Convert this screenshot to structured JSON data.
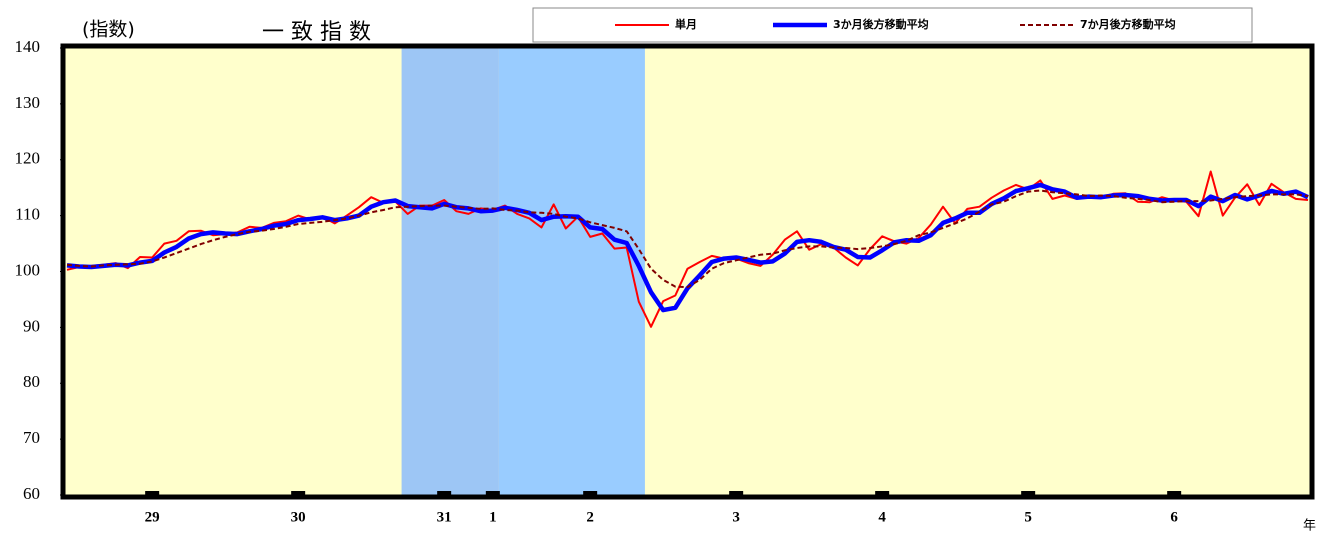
{
  "chart_data": {
    "type": "line",
    "title": "一 致 指 数",
    "ylabel": "(指数)",
    "xlabel": "年",
    "ylim": [
      60,
      140
    ],
    "yticks": [
      60,
      70,
      80,
      90,
      100,
      110,
      120,
      130,
      140
    ],
    "background": "#ffffcc",
    "shaded_periods": [
      {
        "from": 27.5,
        "to": 35.5,
        "color": "#9dc6f5"
      },
      {
        "from": 35.5,
        "to": 47.5,
        "color": "#99ccff"
      }
    ],
    "categories": [
      null,
      null,
      null,
      null,
      null,
      null,
      null,
      "29",
      null,
      null,
      null,
      null,
      null,
      null,
      null,
      null,
      null,
      null,
      null,
      "30",
      null,
      null,
      null,
      null,
      null,
      null,
      null,
      null,
      null,
      null,
      null,
      "31",
      null,
      null,
      null,
      "1",
      null,
      null,
      null,
      null,
      null,
      null,
      null,
      "2",
      null,
      null,
      null,
      null,
      null,
      null,
      null,
      null,
      null,
      null,
      null,
      "3",
      null,
      null,
      null,
      null,
      null,
      null,
      null,
      null,
      null,
      null,
      null,
      "4",
      null,
      null,
      null,
      null,
      null,
      null,
      null,
      null,
      null,
      null,
      null,
      "5",
      null,
      null,
      null,
      null,
      null,
      null,
      null,
      null,
      null,
      null,
      null,
      "6",
      null,
      null,
      null,
      null,
      null,
      null,
      null,
      null,
      null,
      null,
      null
    ],
    "series": [
      {
        "name": "単月",
        "color": "#ff0000",
        "values": [
          100.3,
          100.8,
          101.0,
          101.2,
          101.5,
          100.6,
          102.6,
          102.5,
          105.0,
          105.5,
          107.2,
          107.3,
          106.5,
          106.7,
          107.0,
          108.0,
          107.8,
          108.7,
          109.0,
          110.0,
          109.3,
          109.8,
          108.6,
          110.0,
          111.5,
          113.3,
          112.3,
          112.5,
          110.3,
          111.8,
          111.8,
          112.8,
          110.8,
          110.3,
          111.3,
          111.0,
          111.8,
          110.3,
          109.5,
          107.9,
          112.0,
          107.7,
          109.8,
          106.2,
          106.8,
          104.1,
          104.3,
          94.6,
          90.1,
          94.7,
          95.7,
          100.5,
          101.7,
          102.8,
          102.3,
          102.3,
          101.5,
          101.0,
          103.0,
          105.7,
          107.2,
          103.9,
          104.9,
          104.3,
          102.5,
          101.1,
          104.0,
          106.3,
          105.4,
          105.0,
          106.0,
          108.4,
          111.6,
          108.6,
          111.2,
          111.6,
          113.2,
          114.5,
          115.5,
          114.7,
          116.3,
          113.0,
          113.6,
          113.0,
          113.5,
          113.3,
          113.9,
          114.0,
          112.5,
          112.4,
          113.3,
          112.7,
          112.5,
          109.9,
          117.9,
          110.0,
          113.2,
          115.6,
          111.9,
          115.7,
          114.2,
          113.0,
          112.8
        ]
      },
      {
        "name": "3か月後方移動平均",
        "color": "#0000ff",
        "values": [
          101.1,
          100.9,
          100.8,
          101.0,
          101.2,
          101.1,
          101.6,
          101.9,
          103.4,
          104.4,
          105.9,
          106.7,
          107.0,
          106.8,
          106.7,
          107.2,
          107.6,
          108.2,
          108.5,
          109.2,
          109.4,
          109.7,
          109.2,
          109.5,
          110.0,
          111.6,
          112.4,
          112.7,
          111.7,
          111.5,
          111.3,
          112.1,
          111.5,
          111.3,
          110.8,
          110.9,
          111.4,
          111.0,
          110.5,
          109.2,
          109.8,
          109.9,
          109.8,
          107.9,
          107.6,
          105.7,
          105.1,
          101.0,
          96.3,
          93.1,
          93.5,
          97.0,
          99.3,
          101.7,
          102.3,
          102.5,
          102.1,
          101.6,
          101.8,
          103.2,
          105.3,
          105.6,
          105.3,
          104.4,
          103.9,
          102.6,
          102.5,
          103.8,
          105.2,
          105.6,
          105.5,
          106.5,
          108.7,
          109.5,
          110.5,
          110.5,
          112.1,
          113.1,
          114.4,
          114.9,
          115.5,
          114.7,
          114.3,
          113.2,
          113.4,
          113.3,
          113.6,
          113.7,
          113.5,
          113.0,
          112.7,
          112.8,
          112.8,
          111.7,
          113.4,
          112.6,
          113.7,
          112.9,
          113.6,
          114.4,
          113.9,
          114.3,
          113.3
        ]
      },
      {
        "name": "7か月後方移動平均",
        "color": "#800000",
        "values": [
          101.2,
          101.0,
          100.9,
          101.1,
          101.2,
          101.3,
          101.4,
          101.8,
          102.5,
          103.3,
          104.1,
          104.9,
          105.6,
          106.2,
          106.7,
          107.1,
          107.3,
          107.6,
          108.0,
          108.5,
          108.7,
          108.9,
          109.2,
          109.5,
          110.0,
          110.6,
          111.0,
          111.5,
          111.6,
          111.7,
          111.8,
          111.8,
          111.6,
          111.4,
          111.2,
          111.3,
          111.0,
          110.9,
          110.6,
          110.5,
          110.3,
          109.8,
          109.5,
          108.8,
          108.3,
          107.8,
          107.2,
          104.0,
          100.5,
          98.5,
          97.3,
          97.2,
          98.5,
          100.5,
          101.5,
          102.0,
          102.5,
          103.0,
          103.2,
          103.8,
          104.2,
          104.5,
          104.5,
          104.3,
          104.2,
          104.0,
          104.2,
          104.5,
          104.9,
          105.5,
          106.5,
          107.0,
          107.8,
          108.6,
          109.5,
          110.7,
          112.0,
          112.5,
          113.5,
          114.3,
          114.5,
          114.2,
          114.0,
          113.8,
          113.5,
          113.6,
          113.5,
          113.2,
          113.0,
          112.8,
          112.4,
          112.5,
          112.6,
          112.6,
          112.7,
          113.0,
          113.3,
          113.5,
          113.6,
          113.8,
          113.8,
          113.8,
          113.5
        ]
      }
    ]
  }
}
